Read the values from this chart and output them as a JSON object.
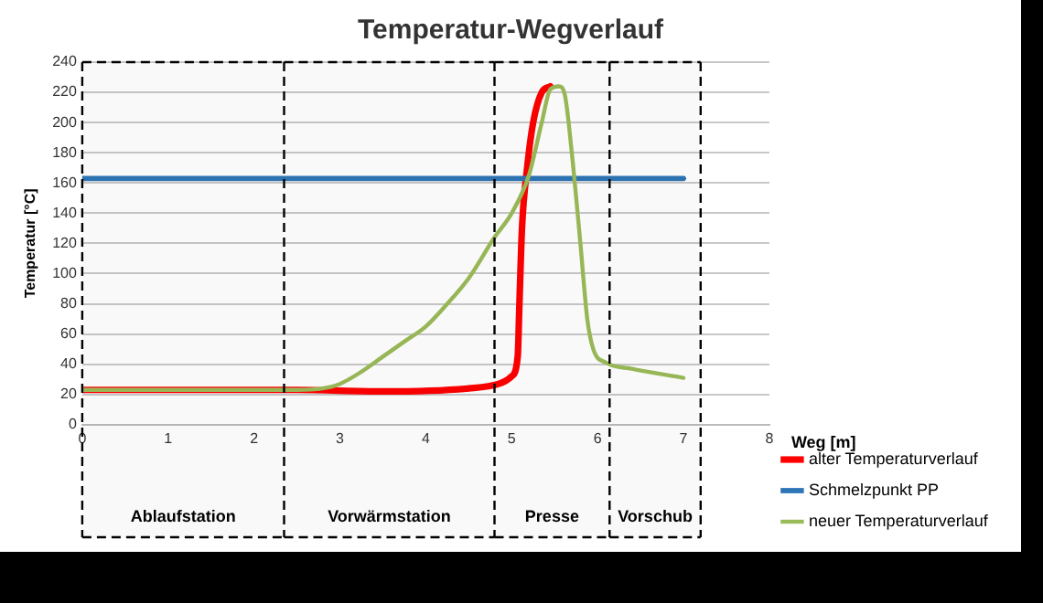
{
  "chart_data": {
    "type": "line",
    "title": "Temperatur-Wegverlauf",
    "xlabel": "Weg [m]",
    "ylabel": "Temperatur [°C]",
    "xlim": [
      0,
      8
    ],
    "xticks": [
      0,
      1,
      2,
      3,
      4,
      5,
      6,
      7,
      8
    ],
    "ylim": [
      0,
      240
    ],
    "yticks": [
      0,
      20,
      40,
      60,
      80,
      100,
      120,
      140,
      160,
      180,
      200,
      220,
      240
    ],
    "grid": "y",
    "legend": "bottom right",
    "marker": "none",
    "line_style": "solid",
    "bands": [
      {
        "axis": "x",
        "from": 0,
        "to": 2.35,
        "label": "Ablaufstation"
      },
      {
        "axis": "x",
        "from": 2.35,
        "to": 4.8,
        "label": "Vorwärmstation"
      },
      {
        "axis": "x",
        "from": 4.8,
        "to": 6.14,
        "label": "Presse"
      },
      {
        "axis": "x",
        "from": 6.14,
        "to": 7.2,
        "label": "Vorschub"
      }
    ],
    "series": [
      {
        "name": "alter Temperaturverlauf",
        "color": "#ff0000",
        "x": [
          0,
          2.5,
          3.5,
          4.5,
          4.85,
          5.0,
          5.07,
          5.09,
          5.12,
          5.18,
          5.25,
          5.35,
          5.45
        ],
        "values": [
          23,
          23,
          22,
          24,
          27,
          32,
          45,
          80,
          130,
          170,
          200,
          220,
          224
        ]
      },
      {
        "name": "Schmelzpunkt PP",
        "color": "#2e75b6",
        "x": [
          0,
          7
        ],
        "values": [
          163,
          163
        ]
      },
      {
        "name": "neuer Temperaturverlauf",
        "color": "#9bbb59",
        "x": [
          0,
          2.5,
          2.8,
          3,
          3.25,
          3.5,
          3.75,
          4,
          4.25,
          4.5,
          4.8,
          5.0,
          5.2,
          5.35,
          5.45,
          5.55,
          5.62,
          5.7,
          5.8,
          5.88,
          5.95,
          6.1,
          6.4,
          7
        ],
        "values": [
          23,
          23,
          24,
          27,
          35,
          45,
          55,
          65,
          80,
          97,
          124,
          140,
          165,
          200,
          222,
          224,
          218,
          180,
          120,
          70,
          50,
          41,
          37,
          31
        ]
      }
    ]
  }
}
